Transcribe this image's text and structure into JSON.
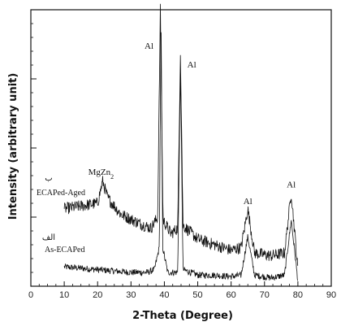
{
  "chart_data": {
    "type": "line",
    "title": "",
    "xlabel": "2-Theta (Degree)",
    "ylabel": "Intensity (arbitrary unit)",
    "xlim": [
      0,
      90
    ],
    "ylim": [
      0,
      100
    ],
    "x_ticks": [
      0,
      10,
      20,
      30,
      40,
      50,
      60,
      70,
      80,
      90
    ],
    "grid": false,
    "series": [
      {
        "name": "As-ECAPed",
        "label_prefix": "الف",
        "color": "#111111",
        "points": [
          [
            10,
            7
          ],
          [
            15,
            6.5
          ],
          [
            20,
            6
          ],
          [
            25,
            5.5
          ],
          [
            30,
            5
          ],
          [
            35,
            5
          ],
          [
            37,
            6
          ],
          [
            38.5,
            14
          ],
          [
            39,
            98
          ],
          [
            39.5,
            14
          ],
          [
            41,
            5
          ],
          [
            44,
            5
          ],
          [
            44.8,
            78
          ],
          [
            45.6,
            6
          ],
          [
            50,
            4
          ],
          [
            55,
            4
          ],
          [
            60,
            3.5
          ],
          [
            63,
            4
          ],
          [
            65,
            18
          ],
          [
            67,
            4
          ],
          [
            72,
            3
          ],
          [
            76,
            4
          ],
          [
            78,
            24
          ],
          [
            80,
            2
          ]
        ]
      },
      {
        "name": "ECAPed-Aged",
        "label_prefix": "ب",
        "color": "#111111",
        "points": [
          [
            10,
            28
          ],
          [
            15,
            29
          ],
          [
            20,
            30
          ],
          [
            21.5,
            38
          ],
          [
            23,
            32
          ],
          [
            27,
            26
          ],
          [
            32,
            23
          ],
          [
            36,
            21
          ],
          [
            38,
            25
          ],
          [
            38.8,
            100
          ],
          [
            39.6,
            24
          ],
          [
            42,
            19
          ],
          [
            44,
            21
          ],
          [
            44.8,
            85
          ],
          [
            45.6,
            22
          ],
          [
            50,
            17
          ],
          [
            55,
            15
          ],
          [
            60,
            13
          ],
          [
            63,
            14
          ],
          [
            65,
            28
          ],
          [
            67,
            12
          ],
          [
            72,
            11
          ],
          [
            76,
            12
          ],
          [
            78,
            34
          ],
          [
            80,
            6
          ]
        ]
      }
    ],
    "annotations": [
      {
        "text": "MgZn",
        "subscript": "2",
        "x": 21.5,
        "y": 38
      },
      {
        "text": "Al",
        "x": 38.8,
        "y": 100
      },
      {
        "text": "Al",
        "x": 44.8,
        "y": 85
      },
      {
        "text": "Al",
        "x": 65,
        "y": 28
      },
      {
        "text": "Al",
        "x": 78,
        "y": 34
      }
    ]
  }
}
